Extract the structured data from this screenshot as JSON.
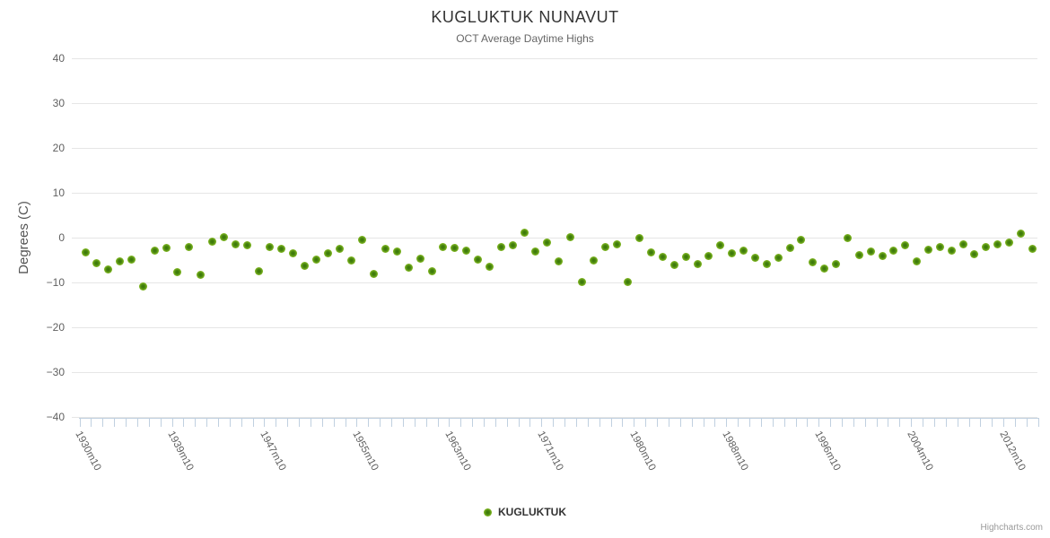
{
  "credits": "Highcharts.com",
  "chart_data": {
    "type": "scatter",
    "title": "KUGLUKTUK NUNAVUT",
    "subtitle": "OCT Average Daytime Highs",
    "ylabel": "Degrees (C)",
    "ylim": [
      -40,
      40
    ],
    "y_ticks": [
      40,
      30,
      20,
      10,
      0,
      -10,
      -20,
      -30,
      -40
    ],
    "x_tick_labels": [
      "1930m10",
      "1939m10",
      "1947m10",
      "1955m10",
      "1963m10",
      "1971m10",
      "1980m10",
      "1988m10",
      "1996m10",
      "2004m10",
      "2012m10"
    ],
    "x_tick_indices": [
      0,
      8,
      16,
      24,
      32,
      40,
      48,
      56,
      64,
      72,
      80
    ],
    "grid": "horizontal",
    "legend_position": "bottom-center",
    "marker": {
      "fill": "#7cb320",
      "core": "#3a7606",
      "radius": 4.5
    },
    "series": [
      {
        "name": "KUGLUKTUK",
        "values": [
          -3.3,
          -5.7,
          -7.1,
          -5.3,
          -4.8,
          -10.8,
          -2.9,
          -2.2,
          -7.7,
          -2.0,
          -8.3,
          -0.9,
          0.2,
          -1.5,
          -1.7,
          -7.5,
          -2.0,
          -2.5,
          -3.5,
          -6.3,
          -4.9,
          -3.5,
          -2.5,
          -5.0,
          -0.5,
          -8.0,
          -2.5,
          -3.1,
          -6.7,
          -4.7,
          -7.5,
          -2.1,
          -2.3,
          -2.8,
          -4.9,
          -6.5,
          -2.1,
          -1.7,
          1.2,
          -3.0,
          -1.0,
          -5.3,
          0.1,
          -9.8,
          -5.0,
          -2.0,
          -1.5,
          -9.8,
          0.0,
          -3.3,
          -4.3,
          -6.0,
          -4.3,
          -5.9,
          -4.0,
          -1.7,
          -3.5,
          -2.9,
          -4.5,
          -5.9,
          -4.5,
          -2.3,
          -0.5,
          -5.5,
          -6.9,
          -5.9,
          0.0,
          -3.9,
          -3.1,
          -4.1,
          -2.8,
          -1.6,
          -5.2,
          -2.7,
          -2.1,
          -2.8,
          -1.5,
          -3.6,
          -2.1,
          -1.5,
          -1.0,
          0.9,
          -2.4
        ]
      }
    ]
  }
}
